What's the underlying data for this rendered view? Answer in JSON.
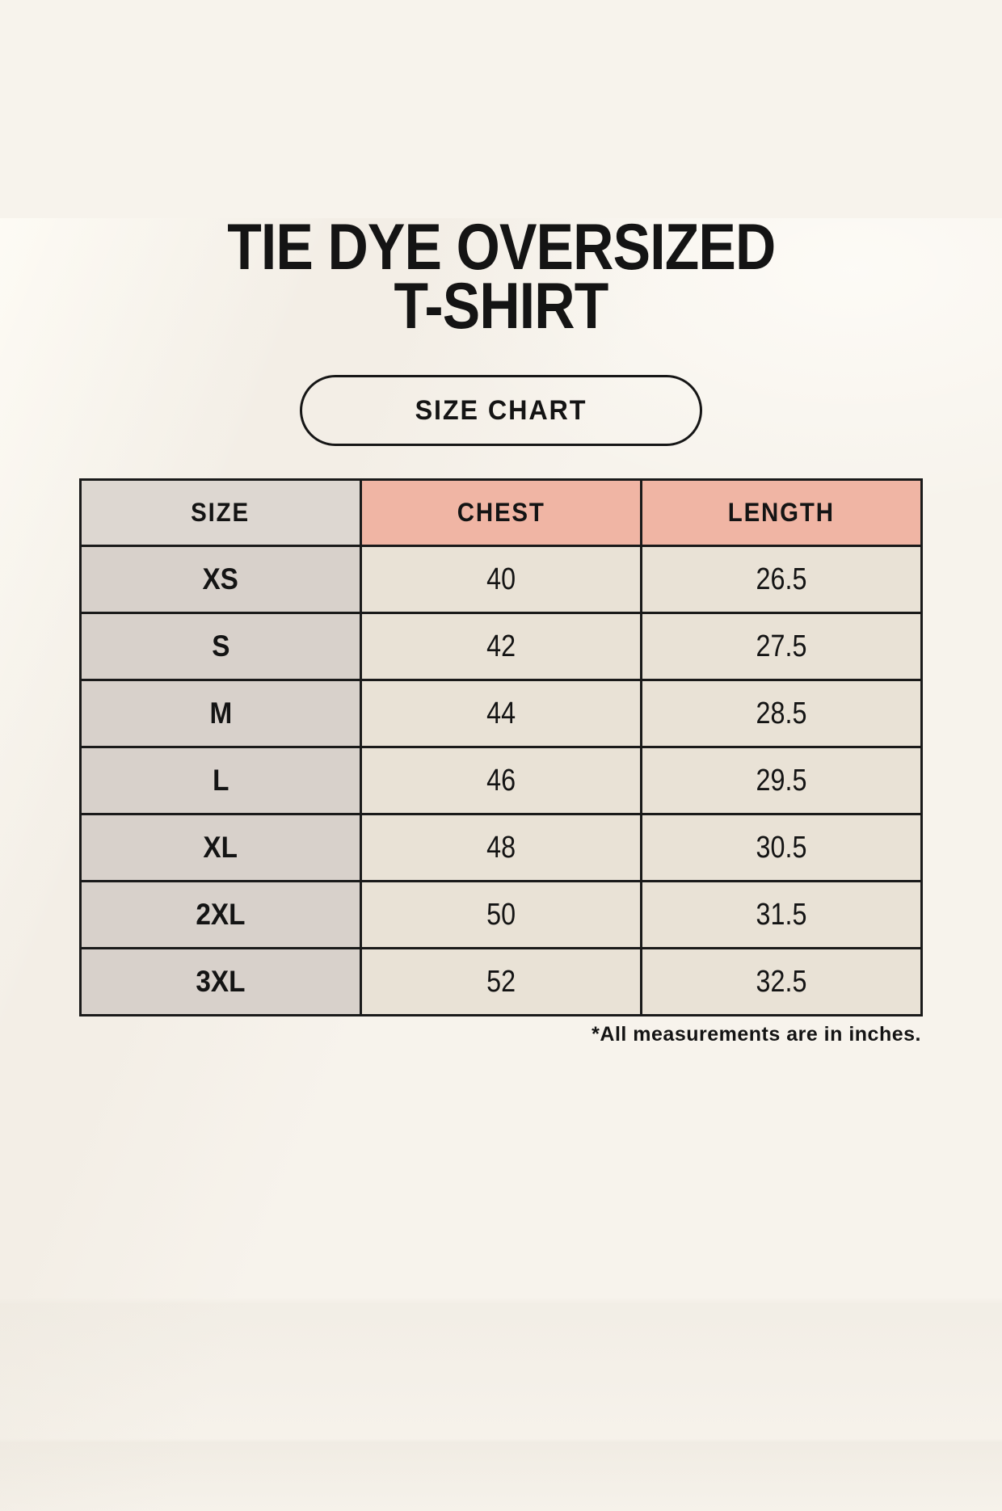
{
  "page": {
    "title_line1": "TIE DYE OVERSIZED",
    "title_line2": "T-SHIRT",
    "badge_label": "SIZE CHART",
    "footnote": "*All measurements are in inches."
  },
  "table": {
    "columns": [
      "SIZE",
      "CHEST",
      "LENGTH"
    ],
    "rows": [
      {
        "size": "XS",
        "chest": "40",
        "length": "26.5"
      },
      {
        "size": "S",
        "chest": "42",
        "length": "27.5"
      },
      {
        "size": "M",
        "chest": "44",
        "length": "28.5"
      },
      {
        "size": "L",
        "chest": "46",
        "length": "29.5"
      },
      {
        "size": "XL",
        "chest": "48",
        "length": "30.5"
      },
      {
        "size": "2XL",
        "chest": "50",
        "length": "31.5"
      },
      {
        "size": "3XL",
        "chest": "52",
        "length": "32.5"
      }
    ]
  },
  "colors": {
    "background": "#f7f3ec",
    "header-pink": "#f0b5a4",
    "header-gray": "#ddd7d1",
    "cell-gray": "#d8d1cb",
    "cell-cream": "#e9e2d6",
    "table-border": "#1a1a1a",
    "text": "#141414"
  }
}
